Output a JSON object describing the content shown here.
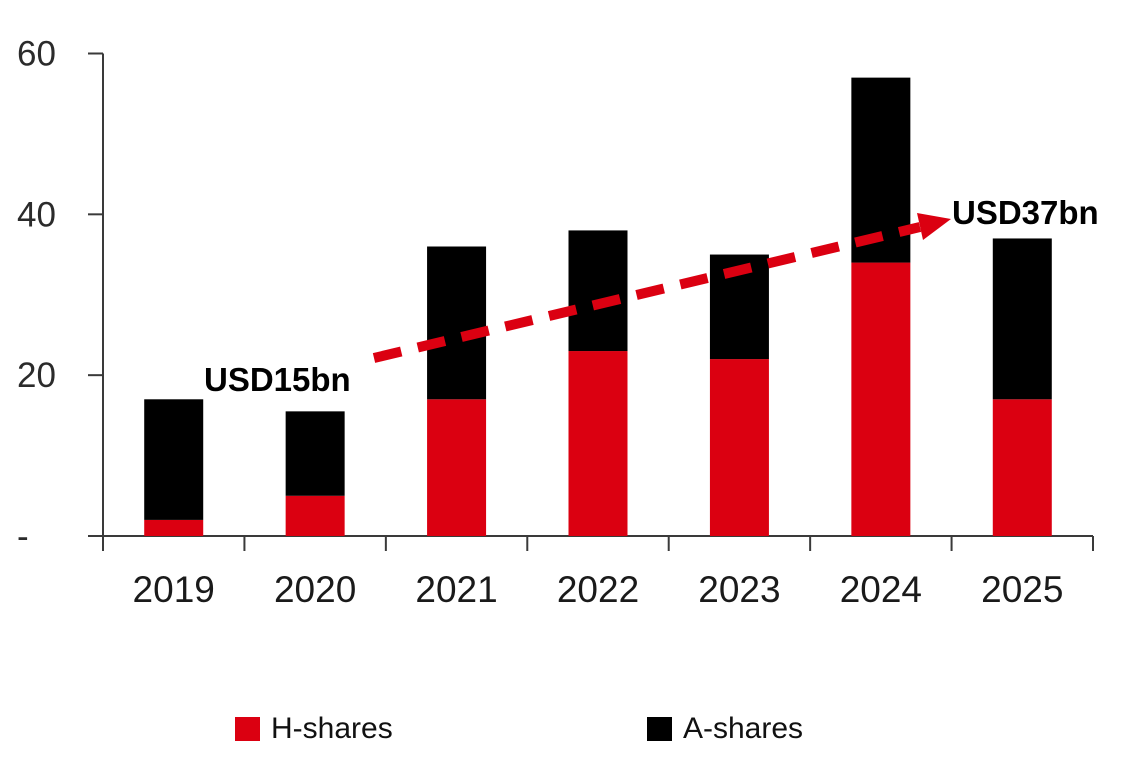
{
  "chart_data": {
    "type": "bar",
    "stacked": true,
    "categories": [
      "2019",
      "2020",
      "2021",
      "2022",
      "2023",
      "2024",
      "2025"
    ],
    "series": [
      {
        "name": "H-shares",
        "color": "#db0011",
        "values": [
          2,
          5,
          17,
          23,
          22,
          34,
          17
        ]
      },
      {
        "name": "A-shares",
        "color": "#000000",
        "values": [
          15,
          10.5,
          19,
          15,
          13,
          23,
          20
        ]
      }
    ],
    "stacked_totals": [
      17,
      15.5,
      36,
      38,
      35,
      57,
      37
    ],
    "ylim": [
      0,
      60
    ],
    "yticks": [
      {
        "value": 0,
        "label": "-"
      },
      {
        "value": 20,
        "label": "20"
      },
      {
        "value": 40,
        "label": "40"
      },
      {
        "value": 60,
        "label": "60"
      }
    ],
    "grid": false,
    "legend_position": "bottom-center",
    "annotations": [
      {
        "text": "USD15bn"
      },
      {
        "text": "USD37bn"
      }
    ],
    "trend_arrow": {
      "style": "dashed",
      "color": "#db0011",
      "from": "USD15bn",
      "to": "USD37bn"
    }
  }
}
